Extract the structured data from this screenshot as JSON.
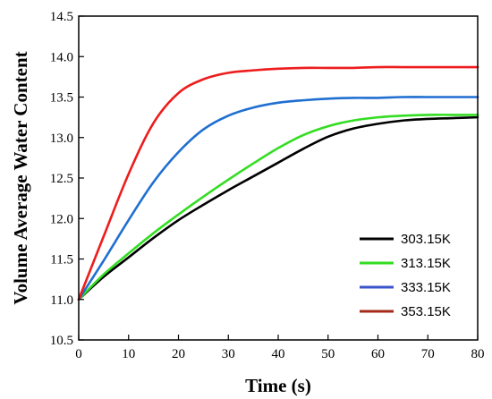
{
  "chart_data": {
    "type": "line",
    "title": "",
    "xlabel": "Time (s)",
    "ylabel": "Volume Average Water Content",
    "xlim": [
      0,
      80
    ],
    "ylim": [
      10.5,
      14.5
    ],
    "xticks": [
      0,
      10,
      20,
      30,
      40,
      50,
      60,
      70,
      80
    ],
    "yticks": [
      "10.5",
      "11.0",
      "11.5",
      "12.0",
      "12.5",
      "13.0",
      "13.5",
      "14.0",
      "14.5"
    ],
    "grid": false,
    "legend_position": "bottom-right",
    "series": [
      {
        "name": "303.15K",
        "color": "#000000",
        "x": [
          0,
          5,
          10,
          15,
          20,
          25,
          30,
          35,
          40,
          45,
          50,
          55,
          60,
          65,
          70,
          75,
          80
        ],
        "y": [
          11.0,
          11.28,
          11.52,
          11.76,
          11.98,
          12.17,
          12.35,
          12.52,
          12.69,
          12.86,
          13.01,
          13.11,
          13.17,
          13.21,
          13.23,
          13.24,
          13.25
        ]
      },
      {
        "name": "313.15K",
        "color": "#33dd22",
        "x": [
          0,
          5,
          10,
          15,
          20,
          25,
          30,
          35,
          40,
          45,
          50,
          55,
          60,
          65,
          70,
          75,
          80
        ],
        "y": [
          11.0,
          11.31,
          11.57,
          11.82,
          12.05,
          12.27,
          12.48,
          12.68,
          12.87,
          13.03,
          13.14,
          13.21,
          13.25,
          13.27,
          13.28,
          13.28,
          13.28
        ]
      },
      {
        "name": "333.15K",
        "color": "#1f6fd1",
        "x": [
          0,
          5,
          10,
          15,
          20,
          25,
          30,
          35,
          40,
          45,
          50,
          55,
          60,
          65,
          70,
          75,
          80
        ],
        "y": [
          11.0,
          11.48,
          11.98,
          12.45,
          12.82,
          13.1,
          13.27,
          13.37,
          13.43,
          13.46,
          13.48,
          13.49,
          13.49,
          13.5,
          13.5,
          13.5,
          13.5
        ]
      },
      {
        "name": "353.15K",
        "color": "#ee1c1c",
        "x": [
          0,
          5,
          10,
          15,
          20,
          25,
          30,
          35,
          40,
          45,
          50,
          55,
          60,
          65,
          70,
          75,
          80
        ],
        "y": [
          11.0,
          11.78,
          12.55,
          13.18,
          13.55,
          13.72,
          13.8,
          13.83,
          13.85,
          13.86,
          13.86,
          13.86,
          13.87,
          13.87,
          13.87,
          13.87,
          13.87
        ]
      }
    ],
    "legend": [
      {
        "label": "303.15K",
        "color": "#000000"
      },
      {
        "label": "313.15K",
        "color": "#33dd22"
      },
      {
        "label": "333.15K",
        "color": "#3a55cc"
      },
      {
        "label": "353.15K",
        "color": "#a52a1a"
      }
    ]
  }
}
